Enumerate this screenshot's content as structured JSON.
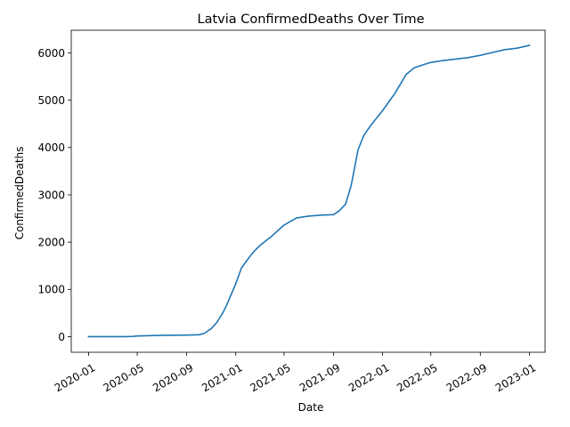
{
  "chart_data": {
    "type": "line",
    "title": "Latvia  ConfirmedDeaths Over Time",
    "xlabel": "Date",
    "ylabel": "ConfirmedDeaths",
    "grid": false,
    "legend": "none",
    "xlim": [
      "2019-11-19",
      "2023-02-09"
    ],
    "ylim": [
      -330,
      6480
    ],
    "x_ticks": [
      "2020-01-01",
      "2020-05-01",
      "2020-09-01",
      "2021-01-01",
      "2021-05-01",
      "2021-09-01",
      "2022-01-01",
      "2022-05-01",
      "2022-09-01",
      "2023-01-01"
    ],
    "x_tick_labels": [
      "2020-01",
      "2020-05",
      "2020-09",
      "2021-01",
      "2021-05",
      "2021-09",
      "2022-01",
      "2022-05",
      "2022-09",
      "2023-01"
    ],
    "y_ticks": [
      0,
      1000,
      2000,
      3000,
      4000,
      5000,
      6000
    ],
    "line_color": "#1f77b4",
    "series": [
      {
        "x": [
          "2020-01-01",
          "2020-03-01",
          "2020-04-01",
          "2020-04-20",
          "2020-05-01",
          "2020-06-01",
          "2020-07-01",
          "2020-08-01",
          "2020-09-01",
          "2020-10-01",
          "2020-10-15",
          "2020-11-01",
          "2020-11-15",
          "2020-12-01",
          "2020-12-10",
          "2020-12-20",
          "2021-01-01",
          "2021-01-15",
          "2021-02-01",
          "2021-02-15",
          "2021-03-01",
          "2021-04-01",
          "2021-05-01",
          "2021-06-01",
          "2021-07-01",
          "2021-08-01",
          "2021-09-01",
          "2021-09-15",
          "2021-10-01",
          "2021-10-15",
          "2021-11-01",
          "2021-11-15",
          "2021-12-01",
          "2021-12-15",
          "2022-01-01",
          "2022-02-01",
          "2022-03-01",
          "2022-03-20",
          "2022-04-01",
          "2022-05-01",
          "2022-06-01",
          "2022-07-01",
          "2022-08-01",
          "2022-09-01",
          "2022-10-01",
          "2022-11-01",
          "2022-12-01",
          "2023-01-01"
        ],
        "y": [
          0,
          0,
          0,
          5,
          15,
          22,
          28,
          30,
          33,
          40,
          70,
          170,
          300,
          520,
          680,
          880,
          1120,
          1450,
          1650,
          1800,
          1920,
          2130,
          2360,
          2510,
          2550,
          2570,
          2580,
          2660,
          2800,
          3200,
          3950,
          4250,
          4450,
          4600,
          4780,
          5150,
          5550,
          5680,
          5720,
          5800,
          5840,
          5870,
          5900,
          5950,
          6010,
          6070,
          6100,
          6160
        ]
      }
    ]
  }
}
